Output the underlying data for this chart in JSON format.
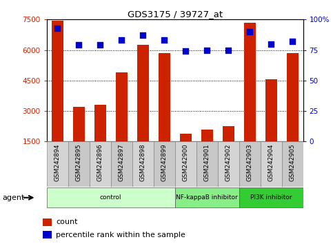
{
  "title": "GDS3175 / 39727_at",
  "samples": [
    "GSM242894",
    "GSM242895",
    "GSM242896",
    "GSM242897",
    "GSM242898",
    "GSM242899",
    "GSM242900",
    "GSM242901",
    "GSM242902",
    "GSM242903",
    "GSM242904",
    "GSM242905"
  ],
  "counts": [
    7450,
    3200,
    3300,
    4900,
    6250,
    5850,
    1900,
    2100,
    2250,
    7350,
    4550,
    5850
  ],
  "percentiles": [
    93,
    79,
    79,
    83,
    87,
    83,
    74,
    75,
    75,
    90,
    80,
    82
  ],
  "bar_color": "#cc2200",
  "dot_color": "#0000cc",
  "ylim_left": [
    1500,
    7500
  ],
  "ylim_right": [
    0,
    100
  ],
  "yticks_left": [
    1500,
    3000,
    4500,
    6000,
    7500
  ],
  "yticks_right": [
    0,
    25,
    50,
    75,
    100
  ],
  "groups": [
    {
      "label": "control",
      "start": 0,
      "end": 5,
      "color": "#ccffcc"
    },
    {
      "label": "NF-kappaB inhibitor",
      "start": 6,
      "end": 8,
      "color": "#88ee88"
    },
    {
      "label": "PI3K inhibitor",
      "start": 9,
      "end": 11,
      "color": "#33cc33"
    }
  ],
  "legend_count_label": "count",
  "legend_pct_label": "percentile rank within the sample",
  "agent_label": "agent",
  "bar_axis_color": "#cc2200",
  "right_axis_color": "#0000cc",
  "xticklabel_bg": "#d0d0d0",
  "xticklabel_bg_alt": "#c0c0c0"
}
